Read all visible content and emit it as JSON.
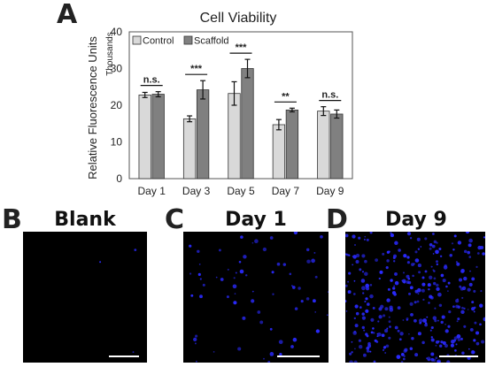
{
  "panels": {
    "a": "A",
    "b": "B",
    "c": "C",
    "d": "D"
  },
  "chart_data": {
    "type": "bar",
    "title": "Cell Viability",
    "ylabel": "Relative Fluorescence Units",
    "yunit": "Thousands",
    "ylim": [
      0,
      40
    ],
    "yticks": [
      0,
      10,
      20,
      30,
      40
    ],
    "categories": [
      "Day 1",
      "Day 3",
      "Day 5",
      "Day 7",
      "Day 9"
    ],
    "series": [
      {
        "name": "Control",
        "color": "#d9d9d9",
        "values": [
          22.8,
          16.3,
          23.2,
          14.7,
          18.4
        ],
        "errors": [
          0.7,
          0.8,
          3.2,
          1.4,
          1.2
        ]
      },
      {
        "name": "Scaffold",
        "color": "#808080",
        "values": [
          23.0,
          24.2,
          30.0,
          18.7,
          17.6
        ],
        "errors": [
          0.7,
          2.5,
          2.5,
          0.5,
          1.1
        ]
      }
    ],
    "significance": [
      "n.s.",
      "***",
      "***",
      "**",
      "n.s."
    ],
    "legend": "top-left",
    "grid": false
  },
  "images": [
    {
      "title": "Blank",
      "stain_color": "#2a2aff"
    },
    {
      "title": "Day 1",
      "stain_color": "#2a2aff"
    },
    {
      "title": "Day 9",
      "stain_color": "#2a2aff"
    }
  ]
}
